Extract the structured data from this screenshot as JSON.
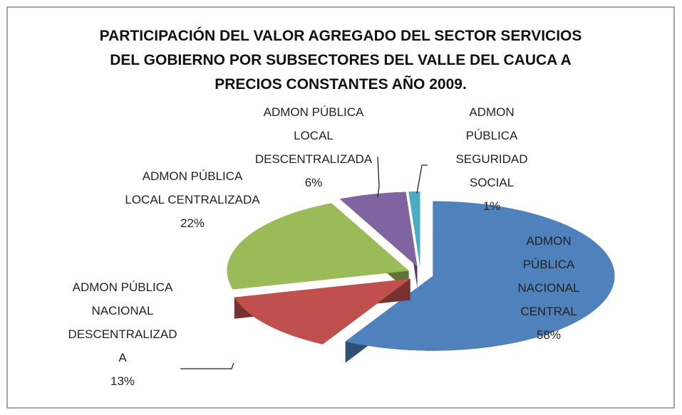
{
  "chart_data": {
    "type": "pie",
    "title": "PARTICIPACIÓN  DEL VALOR AGREGADO DEL SECTOR SERVICIOS DEL GOBIERNO POR SUBSECTORES DEL VALLE DEL CAUCA  A PRECIOS CONSTANTES AÑO 2009.",
    "categories": [
      "ADMON PÚBLICA NACIONAL CENTRAL",
      "ADMON PÚBLICA NACIONAL DESCENTRALIZADA",
      "ADMON PÚBLICA LOCAL CENTRALIZADA",
      "ADMON PÚBLICA LOCAL DESCENTRALIZADA",
      "ADMON PÚBLICA SEGURIDAD SOCIAL"
    ],
    "values": [
      58,
      13,
      22,
      6,
      1
    ],
    "value_labels": [
      "58%",
      "13%",
      "22%",
      "6%",
      "1%"
    ],
    "colors": [
      "#4f81bd",
      "#c0504d",
      "#9bbb59",
      "#8064a2",
      "#4bacc6"
    ]
  }
}
